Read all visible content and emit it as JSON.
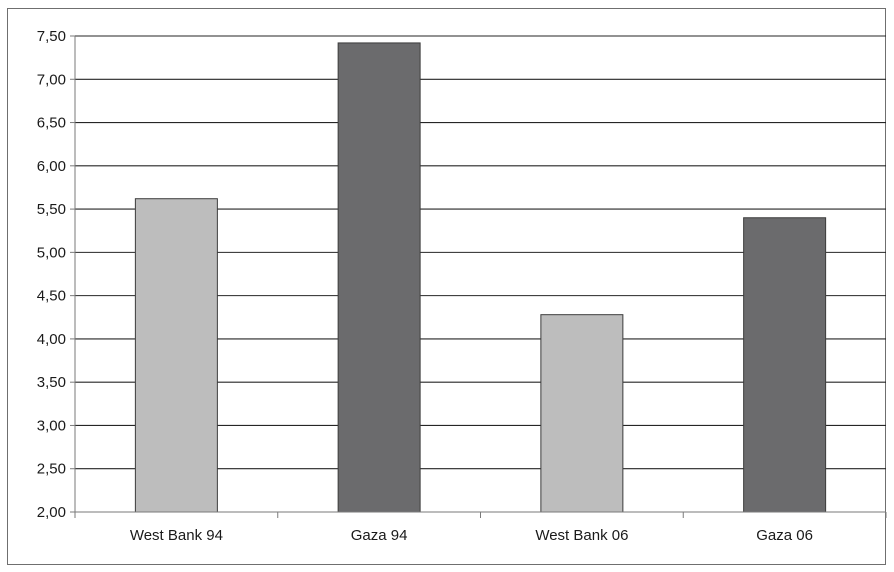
{
  "chart_data": {
    "type": "bar",
    "categories": [
      "West Bank 94",
      "Gaza 94",
      "West Bank 06",
      "Gaza 06"
    ],
    "values": [
      5.62,
      7.42,
      4.28,
      5.4
    ],
    "ylim": [
      2.0,
      7.5
    ],
    "yticks": [
      2.0,
      2.5,
      3.0,
      3.5,
      4.0,
      4.5,
      5.0,
      5.5,
      6.0,
      6.5,
      7.0,
      7.5
    ],
    "ytick_labels": [
      "2,00",
      "2,50",
      "3,00",
      "3,50",
      "4,00",
      "4,50",
      "5,00",
      "5,50",
      "6,00",
      "6,50",
      "7,00",
      "7,50"
    ],
    "grid": true,
    "legend": "none",
    "title": "",
    "xlabel": "",
    "ylabel": "",
    "colors": {
      "bars": [
        "#bdbdbd",
        "#6b6b6d",
        "#bdbdbd",
        "#6b6b6d"
      ],
      "bar_edge": "#3c3c3c",
      "grid": "#262626",
      "axis": "#7a7a7a"
    }
  }
}
